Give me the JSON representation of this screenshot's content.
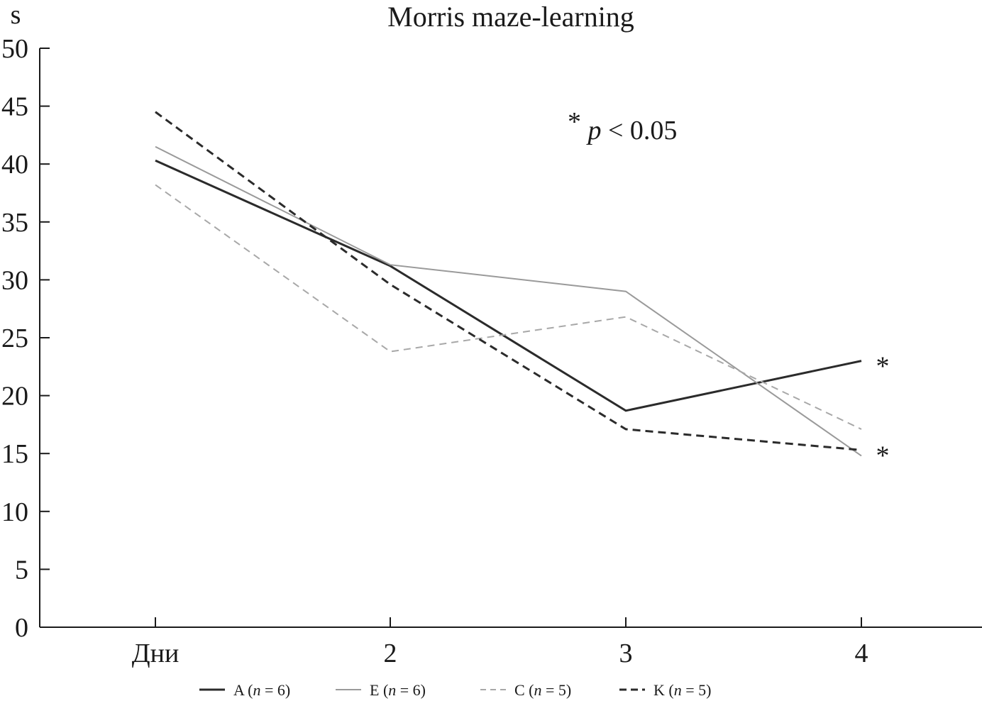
{
  "chart_data": {
    "type": "line",
    "title": "Morris maze-learning",
    "ylabel": "s",
    "xlabel": "",
    "categories": [
      "Дни",
      "2",
      "3",
      "4"
    ],
    "ylim": [
      0,
      50
    ],
    "yticks": [
      0,
      5,
      10,
      15,
      20,
      25,
      30,
      35,
      40,
      45,
      50
    ],
    "grid": false,
    "legend_position": "bottom",
    "series": [
      {
        "key": "A",
        "name": "A",
        "n_label": "n",
        "n_value": "= 6)",
        "color": "#2b2b2b",
        "dash": "solid",
        "width": "dark",
        "values": [
          40.3,
          31.2,
          18.7,
          23.0
        ]
      },
      {
        "key": "E",
        "name": "E",
        "n_label": "n",
        "n_value": "= 6)",
        "color": "#9a9a9a",
        "dash": "solid",
        "width": "light",
        "values": [
          41.5,
          31.3,
          29.0,
          14.8
        ]
      },
      {
        "key": "C",
        "name": "C",
        "n_label": "n",
        "n_value": "= 5)",
        "color": "#a8a8a8",
        "dash": "dashed",
        "width": "light",
        "values": [
          38.2,
          23.8,
          26.8,
          17.1
        ]
      },
      {
        "key": "K",
        "name": "K",
        "n_label": "n",
        "n_value": "= 5)",
        "color": "#2b2b2b",
        "dash": "dashed",
        "width": "dark",
        "values": [
          44.5,
          29.6,
          17.1,
          15.3
        ]
      }
    ],
    "annotations": {
      "pvalue_star": "*",
      "pvalue_p": "p",
      "pvalue_rest": " < 0.05",
      "significance": [
        {
          "series": "A",
          "category": "4",
          "label": "*"
        },
        {
          "series": "K",
          "category": "4",
          "label": "*"
        }
      ]
    }
  }
}
